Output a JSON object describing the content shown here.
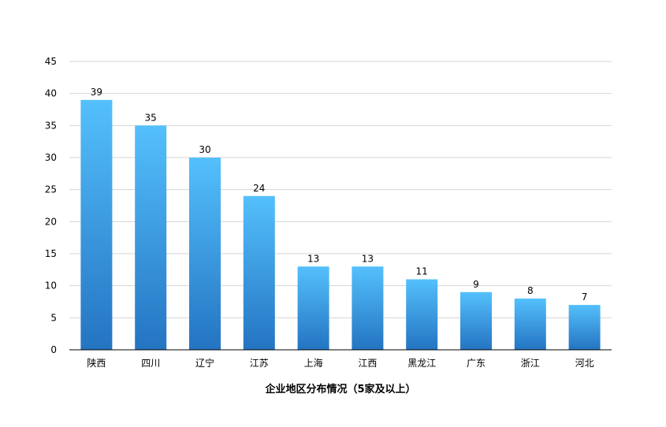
{
  "chart_data": {
    "type": "bar",
    "title": "",
    "xlabel": "企业地区分布情况（5家及以上）",
    "ylabel": "",
    "categories": [
      "陕西",
      "四川",
      "辽宁",
      "江苏",
      "上海",
      "江西",
      "黑龙江",
      "广东",
      "浙江",
      "河北"
    ],
    "values": [
      39,
      35,
      30,
      24,
      13,
      13,
      11,
      9,
      8,
      7
    ],
    "ylim": [
      0,
      45
    ],
    "yticks": [
      "0",
      "5",
      "10",
      "15",
      "20",
      "25",
      "30",
      "35",
      "40",
      "45"
    ],
    "data_labels": [
      "39",
      "35",
      "30",
      "24",
      "13",
      "13",
      "11",
      "9",
      "8",
      "7"
    ],
    "grid": true,
    "legend": "none",
    "colors": {
      "bar_top": "#54c0fc",
      "bar_bottom": "#2474c2",
      "grid": "#d4d4d4",
      "axis": "#000000"
    }
  }
}
